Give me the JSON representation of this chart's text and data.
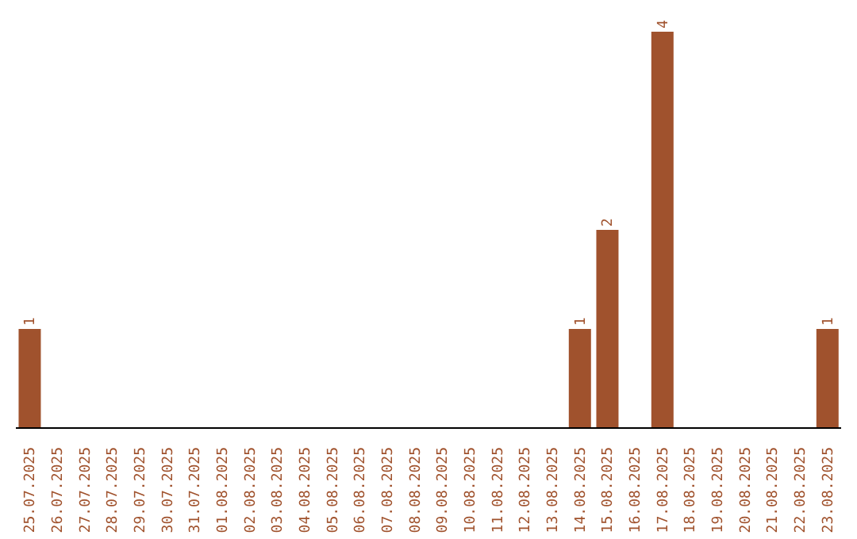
{
  "chart_data": {
    "type": "bar",
    "categories": [
      "25.07.2025",
      "26.07.2025",
      "27.07.2025",
      "28.07.2025",
      "29.07.2025",
      "30.07.2025",
      "31.07.2025",
      "01.08.2025",
      "02.08.2025",
      "03.08.2025",
      "04.08.2025",
      "05.08.2025",
      "06.08.2025",
      "07.08.2025",
      "08.08.2025",
      "09.08.2025",
      "10.08.2025",
      "11.08.2025",
      "12.08.2025",
      "13.08.2025",
      "14.08.2025",
      "15.08.2025",
      "16.08.2025",
      "17.08.2025",
      "18.08.2025",
      "19.08.2025",
      "20.08.2025",
      "21.08.2025",
      "22.08.2025",
      "23.08.2025"
    ],
    "values": [
      1,
      0,
      0,
      0,
      0,
      0,
      0,
      0,
      0,
      0,
      0,
      0,
      0,
      0,
      0,
      0,
      0,
      0,
      0,
      0,
      1,
      2,
      0,
      4,
      0,
      0,
      0,
      0,
      0,
      1
    ],
    "value_labels": [
      "1",
      null,
      null,
      null,
      null,
      null,
      null,
      null,
      null,
      null,
      null,
      null,
      null,
      null,
      null,
      null,
      null,
      null,
      null,
      null,
      "1",
      "2",
      null,
      "4",
      null,
      null,
      null,
      null,
      null,
      "1"
    ],
    "color": "#a0522d"
  }
}
